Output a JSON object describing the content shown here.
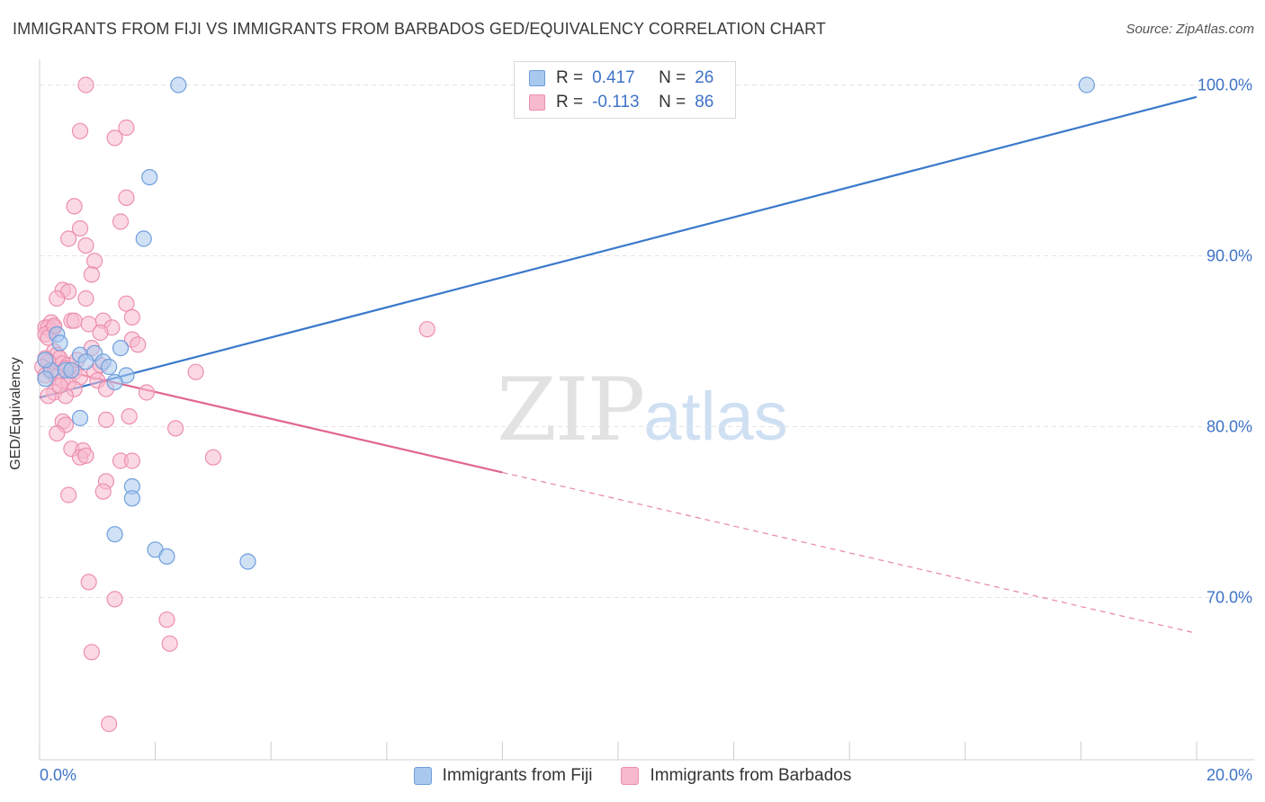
{
  "header": {
    "title": "IMMIGRANTS FROM FIJI VS IMMIGRANTS FROM BARBADOS GED/EQUIVALENCY CORRELATION CHART",
    "source": "Source: ZipAtlas.com"
  },
  "watermark": {
    "zip": "ZIP",
    "atlas": "atlas"
  },
  "stats": {
    "fiji": {
      "r_label": "R =",
      "r_value": "0.417",
      "n_label": "N =",
      "n_value": "26"
    },
    "barbados": {
      "r_label": "R =",
      "r_value": "-0.113",
      "n_label": "N =",
      "n_value": "86"
    }
  },
  "colors": {
    "fiji_fill": "#a9c8ee",
    "fiji_stroke": "#6f9fdc",
    "fiji_line": "#3a78cc",
    "barbados_fill": "#f7b9cd",
    "barbados_stroke": "#ec8fae",
    "barbados_line": "#e2668f",
    "axis_text": "#3f73c8",
    "grid": "#e4e4e4"
  },
  "chart_data": {
    "type": "scatter",
    "title": "IMMIGRANTS FROM FIJI VS IMMIGRANTS FROM BARBADOS GED/EQUIVALENCY CORRELATION CHART",
    "xlabel": "",
    "ylabel": "GED/Equivalency",
    "xlim": [
      0,
      20
    ],
    "ylim": [
      60.5,
      101.5
    ],
    "x_tick_labels": [
      "0.0%",
      "20.0%"
    ],
    "y_ticks": [
      70,
      80,
      90,
      100
    ],
    "y_tick_labels": [
      "70.0%",
      "80.0%",
      "90.0%",
      "100.0%"
    ],
    "legend": [
      "Immigrants from Fiji",
      "Immigrants from Barbados"
    ],
    "series": [
      {
        "name": "Immigrants from Fiji",
        "points": [
          [
            2.4,
            100.0
          ],
          [
            18.1,
            100.0
          ],
          [
            1.9,
            94.6
          ],
          [
            1.8,
            91.0
          ],
          [
            0.3,
            85.4
          ],
          [
            0.35,
            84.9
          ],
          [
            1.4,
            84.6
          ],
          [
            0.7,
            84.2
          ],
          [
            0.95,
            84.3
          ],
          [
            0.8,
            83.8
          ],
          [
            1.1,
            83.8
          ],
          [
            1.2,
            83.5
          ],
          [
            0.2,
            83.3
          ],
          [
            0.45,
            83.3
          ],
          [
            0.55,
            83.3
          ],
          [
            1.5,
            83.0
          ],
          [
            0.1,
            82.8
          ],
          [
            1.3,
            82.6
          ],
          [
            0.7,
            80.5
          ],
          [
            1.6,
            76.5
          ],
          [
            1.6,
            75.8
          ],
          [
            1.3,
            73.7
          ],
          [
            2.0,
            72.8
          ],
          [
            2.2,
            72.4
          ],
          [
            3.6,
            72.1
          ],
          [
            0.1,
            83.9
          ]
        ],
        "trend": {
          "x": [
            0,
            20
          ],
          "y": [
            81.7,
            99.3
          ],
          "solid_until_x": 20
        }
      },
      {
        "name": "Immigrants from Barbados",
        "points": [
          [
            0.8,
            100.0
          ],
          [
            1.5,
            97.5
          ],
          [
            0.7,
            97.3
          ],
          [
            1.3,
            96.9
          ],
          [
            1.5,
            93.4
          ],
          [
            0.6,
            92.9
          ],
          [
            1.4,
            92.0
          ],
          [
            0.7,
            91.6
          ],
          [
            0.5,
            91.0
          ],
          [
            0.8,
            90.6
          ],
          [
            0.95,
            89.7
          ],
          [
            0.9,
            88.9
          ],
          [
            0.4,
            88.0
          ],
          [
            0.5,
            87.9
          ],
          [
            0.3,
            87.5
          ],
          [
            0.8,
            87.5
          ],
          [
            1.5,
            87.2
          ],
          [
            0.55,
            86.2
          ],
          [
            0.6,
            86.2
          ],
          [
            1.1,
            86.2
          ],
          [
            1.6,
            86.4
          ],
          [
            0.2,
            86.1
          ],
          [
            0.85,
            86.0
          ],
          [
            0.1,
            85.8
          ],
          [
            0.15,
            85.8
          ],
          [
            0.2,
            85.6
          ],
          [
            0.25,
            85.8
          ],
          [
            1.25,
            85.8
          ],
          [
            1.05,
            85.5
          ],
          [
            6.7,
            85.7
          ],
          [
            1.6,
            85.1
          ],
          [
            0.1,
            85.4
          ],
          [
            0.15,
            85.2
          ],
          [
            1.7,
            84.8
          ],
          [
            0.9,
            84.6
          ],
          [
            0.25,
            84.4
          ],
          [
            0.3,
            84.2
          ],
          [
            0.1,
            84.0
          ],
          [
            0.35,
            84.0
          ],
          [
            0.15,
            83.8
          ],
          [
            0.4,
            83.7
          ],
          [
            0.5,
            83.6
          ],
          [
            0.05,
            83.5
          ],
          [
            0.45,
            83.4
          ],
          [
            0.2,
            83.2
          ],
          [
            0.6,
            83.2
          ],
          [
            0.1,
            83.0
          ],
          [
            0.95,
            83.2
          ],
          [
            2.7,
            83.2
          ],
          [
            0.3,
            82.9
          ],
          [
            0.4,
            82.7
          ],
          [
            0.5,
            82.6
          ],
          [
            0.7,
            82.9
          ],
          [
            1.0,
            82.7
          ],
          [
            0.6,
            82.2
          ],
          [
            1.15,
            82.2
          ],
          [
            0.25,
            82.0
          ],
          [
            1.85,
            82.0
          ],
          [
            0.15,
            81.8
          ],
          [
            0.45,
            81.8
          ],
          [
            1.55,
            80.6
          ],
          [
            1.15,
            80.4
          ],
          [
            0.4,
            80.3
          ],
          [
            0.45,
            80.1
          ],
          [
            2.35,
            79.9
          ],
          [
            0.3,
            79.6
          ],
          [
            0.55,
            78.7
          ],
          [
            0.75,
            78.6
          ],
          [
            0.7,
            78.2
          ],
          [
            0.8,
            78.3
          ],
          [
            1.4,
            78.0
          ],
          [
            1.6,
            78.0
          ],
          [
            3.0,
            78.2
          ],
          [
            1.15,
            76.8
          ],
          [
            1.1,
            76.2
          ],
          [
            0.5,
            76.0
          ],
          [
            0.85,
            70.9
          ],
          [
            1.3,
            69.9
          ],
          [
            2.2,
            68.7
          ],
          [
            2.25,
            67.3
          ],
          [
            0.9,
            66.8
          ],
          [
            1.2,
            62.6
          ],
          [
            0.35,
            82.4
          ],
          [
            0.65,
            83.9
          ],
          [
            1.05,
            83.6
          ],
          [
            0.25,
            85.9
          ]
        ],
        "trend": {
          "x": [
            0,
            20
          ],
          "y": [
            83.6,
            67.9
          ],
          "solid_until_x": 8
        }
      }
    ]
  }
}
